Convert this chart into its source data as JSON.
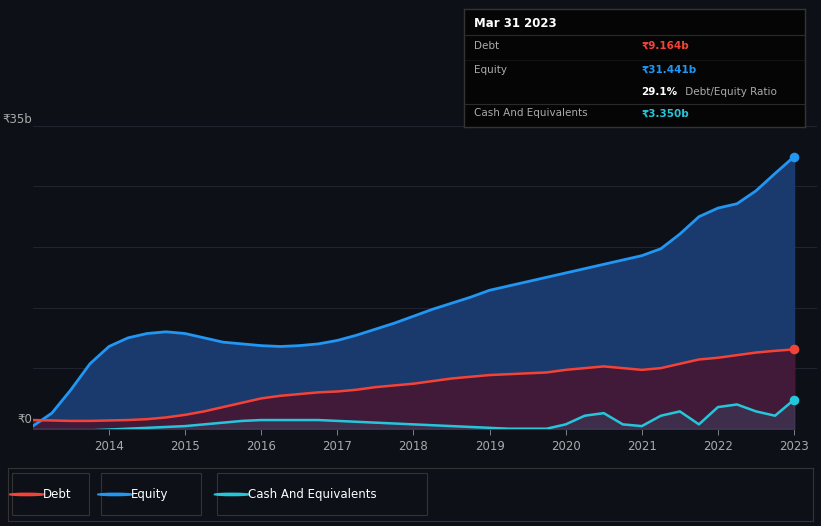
{
  "background_color": "#0d1117",
  "plot_bg_color": "#0d1117",
  "grid_color": "#252836",
  "years": [
    2013.0,
    2013.25,
    2013.5,
    2013.75,
    2014.0,
    2014.25,
    2014.5,
    2014.75,
    2015.0,
    2015.25,
    2015.5,
    2015.75,
    2016.0,
    2016.25,
    2016.5,
    2016.75,
    2017.0,
    2017.25,
    2017.5,
    2017.75,
    2018.0,
    2018.25,
    2018.5,
    2018.75,
    2019.0,
    2019.25,
    2019.5,
    2019.75,
    2020.0,
    2020.25,
    2020.5,
    2020.75,
    2021.0,
    2021.25,
    2021.5,
    2021.75,
    2022.0,
    2022.25,
    2022.5,
    2022.75,
    2023.0
  ],
  "equity": [
    0.3,
    1.8,
    4.5,
    7.5,
    9.5,
    10.5,
    11.0,
    11.2,
    11.0,
    10.5,
    10.0,
    9.8,
    9.6,
    9.5,
    9.6,
    9.8,
    10.2,
    10.8,
    11.5,
    12.2,
    13.0,
    13.8,
    14.5,
    15.2,
    16.0,
    16.5,
    17.0,
    17.5,
    18.0,
    18.5,
    19.0,
    19.5,
    20.0,
    20.8,
    22.5,
    24.5,
    25.5,
    26.0,
    27.5,
    29.5,
    31.441
  ],
  "debt": [
    1.0,
    0.95,
    0.9,
    0.9,
    0.95,
    1.0,
    1.1,
    1.3,
    1.6,
    2.0,
    2.5,
    3.0,
    3.5,
    3.8,
    4.0,
    4.2,
    4.3,
    4.5,
    4.8,
    5.0,
    5.2,
    5.5,
    5.8,
    6.0,
    6.2,
    6.3,
    6.4,
    6.5,
    6.8,
    7.0,
    7.2,
    7.0,
    6.8,
    7.0,
    7.5,
    8.0,
    8.2,
    8.5,
    8.8,
    9.0,
    9.164
  ],
  "cash": [
    -0.5,
    -0.4,
    -0.3,
    -0.2,
    -0.1,
    0.0,
    0.1,
    0.2,
    0.3,
    0.5,
    0.7,
    0.9,
    1.0,
    1.0,
    1.0,
    1.0,
    0.9,
    0.8,
    0.7,
    0.6,
    0.5,
    0.4,
    0.3,
    0.2,
    0.1,
    0.0,
    0.0,
    0.0,
    0.5,
    1.5,
    1.8,
    0.5,
    0.3,
    1.5,
    2.0,
    0.5,
    2.5,
    2.8,
    2.0,
    1.5,
    3.35
  ],
  "x_ticks": [
    2014,
    2015,
    2016,
    2017,
    2018,
    2019,
    2020,
    2021,
    2022,
    2023
  ],
  "x_tick_labels": [
    "2014",
    "2015",
    "2016",
    "2017",
    "2018",
    "2019",
    "2020",
    "2021",
    "2022",
    "2023"
  ],
  "y_label_35b": "₹35b",
  "y_label_0": "₹0",
  "equity_color": "#2196F3",
  "debt_color": "#f44336",
  "cash_color": "#26C6DA",
  "equity_fill_color": "#1a3a6e",
  "debt_fill_color": "#4a1530",
  "tooltip_bg": "#050505",
  "tooltip_title": "Mar 31 2023",
  "tooltip_debt_label": "Debt",
  "tooltip_debt_value": "₹9.164b",
  "tooltip_equity_label": "Equity",
  "tooltip_equity_value": "₹31.441b",
  "tooltip_ratio_bold": "29.1%",
  "tooltip_ratio_normal": " Debt/Equity Ratio",
  "tooltip_cash_label": "Cash And Equivalents",
  "tooltip_cash_value": "₹3.350b",
  "legend_items": [
    {
      "label": "Debt",
      "color": "#f44336"
    },
    {
      "label": "Equity",
      "color": "#2196F3"
    },
    {
      "label": "Cash And Equivalents",
      "color": "#26C6DA"
    }
  ],
  "ylim": [
    0,
    38
  ],
  "xlim": [
    2013.0,
    2023.3
  ],
  "grid_y_values": [
    35
  ]
}
